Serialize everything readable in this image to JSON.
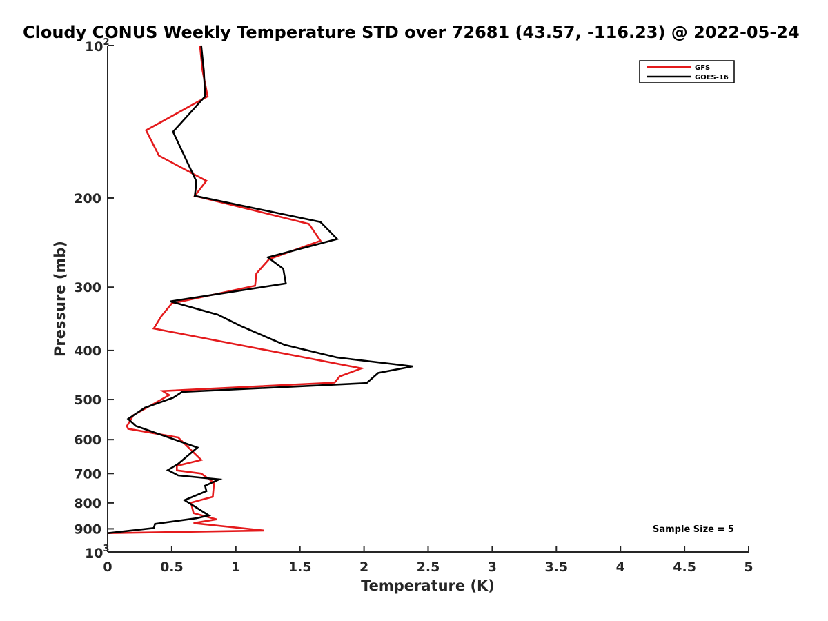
{
  "chart_data": {
    "type": "line",
    "title": "Cloudy CONUS Weekly Temperature STD over 72681 (43.57, -116.23) @ 2022-05-24",
    "xlabel": "Temperature (K)",
    "ylabel": "Pressure (mb)",
    "xlim": [
      0,
      5
    ],
    "ylim": [
      100,
      1000
    ],
    "y_scale": "log",
    "y_reversed": true,
    "x_ticks": [
      0,
      0.5,
      1,
      1.5,
      2,
      2.5,
      3,
      3.5,
      4,
      4.5,
      5
    ],
    "x_tick_labels": [
      "0",
      "0.5",
      "1",
      "1.5",
      "2",
      "2.5",
      "3",
      "3.5",
      "4",
      "4.5",
      "5"
    ],
    "y_ticks": [
      {
        "value": 100,
        "base": "10",
        "exp": "2"
      },
      {
        "value": 200,
        "label": "200"
      },
      {
        "value": 300,
        "label": "300"
      },
      {
        "value": 400,
        "label": "400"
      },
      {
        "value": 500,
        "label": "500"
      },
      {
        "value": 600,
        "label": "600"
      },
      {
        "value": 700,
        "label": "700"
      },
      {
        "value": 800,
        "label": "800"
      },
      {
        "value": 900,
        "label": "900"
      },
      {
        "value": 1000,
        "base": "10",
        "exp": "3"
      }
    ],
    "grid": false,
    "legend_position": "top-right",
    "annotation": "Sample Size = 5",
    "series": [
      {
        "name": "GFS",
        "color": "#e41a1c",
        "x": [
          0.72,
          0.74,
          0.78,
          0.3,
          0.4,
          0.77,
          0.68,
          1.57,
          1.66,
          1.26,
          1.16,
          1.15,
          0.5,
          0.42,
          0.36,
          1.98,
          1.81,
          1.77,
          0.43,
          0.48,
          0.2,
          0.15,
          0.16,
          0.55,
          0.73,
          0.54,
          0.54,
          0.73,
          0.83,
          0.82,
          0.65,
          0.67,
          0.85,
          0.67,
          1.22,
          0.0
        ],
        "y": [
          100,
          112,
          126,
          147,
          165,
          185,
          198,
          225,
          243,
          264,
          282,
          298,
          323,
          342,
          362,
          434,
          450,
          463,
          481,
          490,
          537,
          564,
          571,
          594,
          658,
          676,
          690,
          700,
          730,
          778,
          799,
          838,
          862,
          877,
          907,
          918
        ]
      },
      {
        "name": "GOES-16",
        "color": "#000000",
        "x": [
          0.73,
          0.75,
          0.76,
          0.51,
          0.69,
          0.69,
          0.68,
          1.66,
          1.79,
          1.25,
          1.37,
          1.39,
          0.49,
          0.86,
          1.04,
          1.38,
          1.79,
          2.38,
          2.11,
          2.02,
          0.58,
          0.51,
          0.29,
          0.16,
          0.22,
          0.7,
          0.55,
          0.47,
          0.55,
          0.87,
          0.76,
          0.77,
          0.6,
          0.79,
          0.69,
          0.37,
          0.36,
          0.0
        ],
        "y": [
          100,
          112,
          126,
          148,
          185,
          189,
          198,
          223,
          241,
          262,
          276,
          295,
          320,
          340,
          358,
          390,
          413,
          430,
          443,
          464,
          483,
          496,
          519,
          546,
          564,
          622,
          670,
          689,
          706,
          719,
          740,
          758,
          790,
          847,
          858,
          880,
          897,
          918
        ]
      }
    ]
  }
}
